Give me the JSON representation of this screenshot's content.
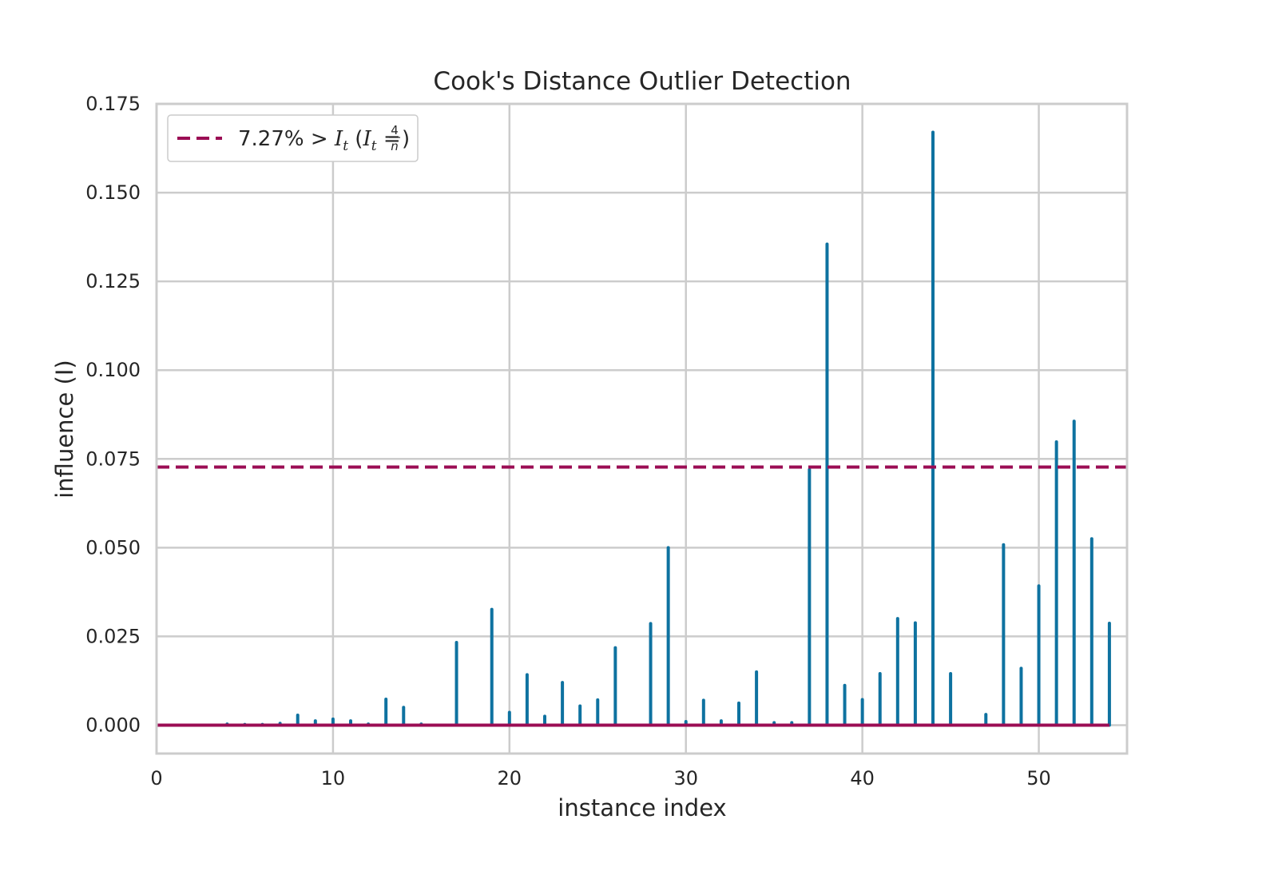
{
  "chart_data": {
    "type": "stem",
    "title": "Cook's Distance Outlier Detection",
    "xlabel": "instance index",
    "ylabel": "influence (I)",
    "xlim": [
      0,
      55
    ],
    "ylim": [
      -0.008,
      0.175
    ],
    "xticks": [
      0,
      10,
      20,
      30,
      40,
      50
    ],
    "yticks": [
      0.0,
      0.025,
      0.05,
      0.075,
      0.1,
      0.125,
      0.15,
      0.175
    ],
    "ytick_labels": [
      "0.000",
      "0.025",
      "0.050",
      "0.075",
      "0.100",
      "0.125",
      "0.150",
      "0.175"
    ],
    "grid": true,
    "legend_placement": "top-left",
    "threshold": 0.0727,
    "legend": {
      "prefix": "7.27% > ",
      "symbol": "I",
      "sub": "t",
      "open": " (",
      "eq": " = ",
      "num": "4",
      "den": "n",
      "close": ")"
    },
    "x": [
      0,
      1,
      2,
      3,
      4,
      5,
      6,
      7,
      8,
      9,
      10,
      11,
      12,
      13,
      14,
      15,
      16,
      17,
      18,
      19,
      20,
      21,
      22,
      23,
      24,
      25,
      26,
      27,
      28,
      29,
      30,
      31,
      32,
      33,
      34,
      35,
      36,
      37,
      38,
      39,
      40,
      41,
      42,
      43,
      44,
      45,
      46,
      47,
      48,
      49,
      50,
      51,
      52,
      53,
      54
    ],
    "values": [
      0,
      0,
      0,
      0,
      0.0003,
      0.0002,
      0.0002,
      0.0005,
      0.0028,
      0.0012,
      0.0017,
      0.0012,
      0.0003,
      0.0073,
      0.005,
      0.0003,
      0,
      0.0233,
      0,
      0.0326,
      0.0036,
      0.0142,
      0.0025,
      0.012,
      0.0054,
      0.0071,
      0.0218,
      0,
      0.0286,
      0.05,
      0.001,
      0.007,
      0.0012,
      0.0062,
      0.015,
      0.0007,
      0.0007,
      0.072,
      0.1355,
      0.0112,
      0.0072,
      0.0145,
      0.03,
      0.0288,
      0.167,
      0.0145,
      0,
      0.003,
      0.0508,
      0.016,
      0.0392,
      0.0798,
      0.0856,
      0.0525,
      0.0287
    ],
    "colors": {
      "stem": "#1f77a4",
      "stem_actual": "#0e72a0",
      "threshold": "#9b0d54",
      "grid": "#cccccc",
      "background": "#ffffff"
    }
  }
}
